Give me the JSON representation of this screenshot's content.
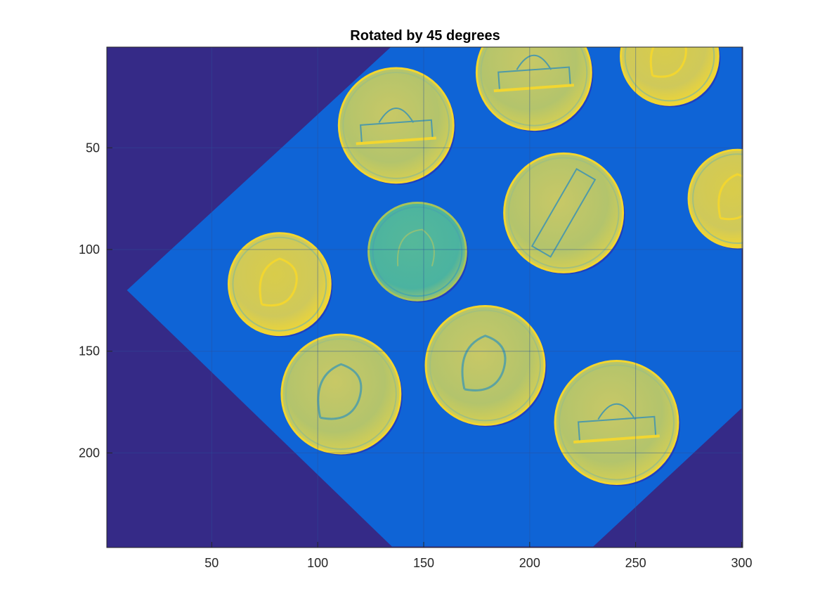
{
  "figure": {
    "title": "Rotated by 45 degrees",
    "colors": {
      "background": "#ffffff",
      "outside_region": "#352a87",
      "inside_region": "#0f64d6",
      "coin_fill": "#b5c46a",
      "coin_highlight": "#f2d630",
      "coin_shadow": "#1f3fbf",
      "grid": "#2a4f9a",
      "axis": "#262626"
    }
  },
  "axes": {
    "x_ticks": [
      50,
      100,
      150,
      200,
      250,
      300
    ],
    "x_tick_labels": [
      "50",
      "100",
      "150",
      "200",
      "250",
      "300"
    ],
    "y_ticks": [
      50,
      100,
      150,
      200
    ],
    "y_tick_labels": [
      "50",
      "100",
      "150",
      "200"
    ],
    "xlim": [
      0.5,
      300.5
    ],
    "ylim": [
      0.5,
      246.5
    ],
    "grid": true
  },
  "image_content": {
    "rotated_boundary": [
      [
        135,
        0
      ],
      [
        10,
        120
      ],
      [
        135,
        246
      ],
      [
        230,
        246
      ],
      [
        300,
        178
      ],
      [
        300,
        0
      ]
    ],
    "coins": [
      {
        "cx": 137,
        "cy": 39,
        "r": 27,
        "kind": "nickel-building"
      },
      {
        "cx": 202,
        "cy": 13,
        "r": 27,
        "kind": "nickel-building"
      },
      {
        "cx": 266,
        "cy": 5,
        "r": 23,
        "kind": "penny"
      },
      {
        "cx": 216,
        "cy": 82,
        "r": 28,
        "kind": "nickel-rotated"
      },
      {
        "cx": 298,
        "cy": 75,
        "r": 23,
        "kind": "penny"
      },
      {
        "cx": 147,
        "cy": 101,
        "r": 23,
        "kind": "dime"
      },
      {
        "cx": 82,
        "cy": 117,
        "r": 24,
        "kind": "penny"
      },
      {
        "cx": 179,
        "cy": 157,
        "r": 28,
        "kind": "nickel-head"
      },
      {
        "cx": 111,
        "cy": 171,
        "r": 28,
        "kind": "nickel-head"
      },
      {
        "cx": 241,
        "cy": 185,
        "r": 29,
        "kind": "nickel-building"
      }
    ]
  }
}
